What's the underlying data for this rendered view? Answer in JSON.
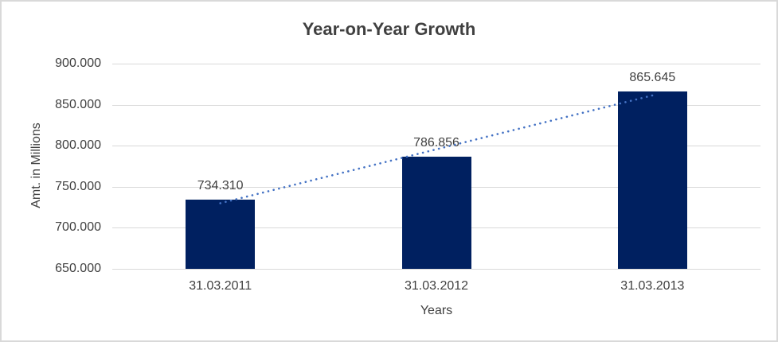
{
  "chart_data": {
    "type": "bar",
    "title": "Year-on-Year Growth",
    "xlabel": "Years",
    "ylabel": "Amt. in Millions",
    "categories": [
      "31.03.2011",
      "31.03.2012",
      "31.03.2013"
    ],
    "values": [
      734310,
      786856,
      865645
    ],
    "value_labels": [
      "734.310",
      "786.856",
      "865.645"
    ],
    "ylim": [
      650000,
      900000
    ],
    "ytick_step": 50000,
    "ytick_labels": [
      "650.000",
      "700.000",
      "750.000",
      "800.000",
      "850.000",
      "900.000"
    ],
    "grid": true,
    "legend": "none",
    "trendline": {
      "type": "linear",
      "style": "dotted"
    },
    "colors": {
      "bar": "#002060",
      "trendline": "#4472c4",
      "gridline": "#d9d9d9",
      "axis_line": "#d9d9d9",
      "text": "#404040",
      "border": "#d9d9d9",
      "background": "#ffffff"
    }
  }
}
